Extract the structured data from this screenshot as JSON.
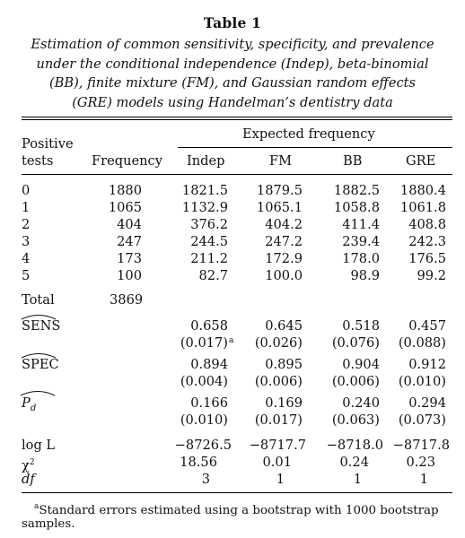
{
  "table": {
    "title": "Table 1",
    "caption_lines": [
      "Estimation of common sensitivity, specificity, and prevalence",
      "under the conditional independence (Indep), beta-binomial",
      "(BB), finite mixture (FM), and Gaussian random effects",
      "(GRE) models using Handelman’s dentistry data"
    ],
    "headers": {
      "positive_tests_line1": "Positive",
      "positive_tests_line2": "tests",
      "frequency": "Frequency",
      "expected_frequency": "Expected frequency",
      "models": [
        "Indep",
        "FM",
        "BB",
        "GRE"
      ]
    },
    "rows": [
      {
        "tests": "0",
        "frequency": "1880",
        "values": [
          "1821.5",
          "1879.5",
          "1882.5",
          "1880.4"
        ]
      },
      {
        "tests": "1",
        "frequency": "1065",
        "values": [
          "1132.9",
          "1065.1",
          "1058.8",
          "1061.8"
        ]
      },
      {
        "tests": "2",
        "frequency": "404",
        "values": [
          "376.2",
          "404.2",
          "411.4",
          "408.8"
        ]
      },
      {
        "tests": "3",
        "frequency": "247",
        "values": [
          "244.5",
          "247.2",
          "239.4",
          "242.3"
        ]
      },
      {
        "tests": "4",
        "frequency": "173",
        "values": [
          "211.2",
          "172.9",
          "178.0",
          "176.5"
        ]
      },
      {
        "tests": "5",
        "frequency": "100",
        "values": [
          "82.7",
          "100.0",
          "98.9",
          "99.2"
        ]
      }
    ],
    "total": {
      "label": "Total",
      "frequency": "3869"
    },
    "estimates": [
      {
        "label": "SENS",
        "values": [
          "0.658",
          "0.645",
          "0.518",
          "0.457"
        ],
        "se": [
          "(0.017)",
          "(0.026)",
          "(0.076)",
          "(0.088)"
        ],
        "se_note": "a"
      },
      {
        "label": "SPEC",
        "values": [
          "0.894",
          "0.895",
          "0.904",
          "0.912"
        ],
        "se": [
          "(0.004)",
          "(0.006)",
          "(0.006)",
          "(0.010)"
        ]
      },
      {
        "label": "P",
        "subscript": "d",
        "values": [
          "0.166",
          "0.169",
          "0.240",
          "0.294"
        ],
        "se": [
          "(0.010)",
          "(0.017)",
          "(0.063)",
          "(0.073)"
        ]
      }
    ],
    "fit": [
      {
        "label": "log L",
        "values": [
          "−8726.5",
          "−8717.7",
          "−8718.0",
          "−8717.8"
        ]
      },
      {
        "label": "χ",
        "superscript": "2",
        "values": [
          "18.56",
          "0.01",
          "0.24",
          "0.23"
        ]
      },
      {
        "label": "df",
        "values": [
          "3",
          "1",
          "1",
          "1"
        ]
      }
    ],
    "footnote": {
      "mark": "a",
      "text": "Standard errors estimated using a bootstrap with 1000 bootstrap",
      "text_line2": "samples."
    }
  }
}
